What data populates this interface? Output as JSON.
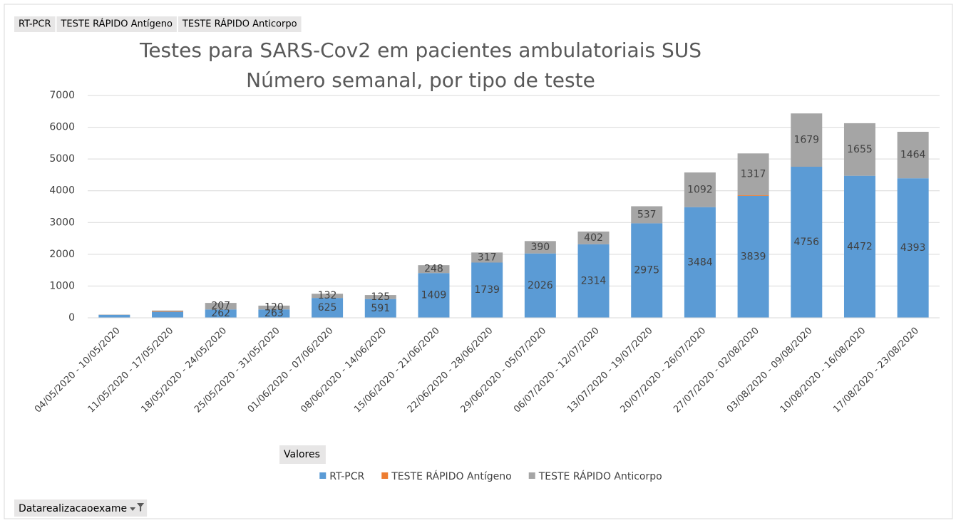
{
  "chart_data": {
    "type": "stacked_bar",
    "title": "Testes para SARS-Cov2 em pacientes ambulatoriais SUS",
    "subtitle": "Número semanal, por tipo de teste",
    "categories": [
      "04/05/2020 - 10/05/2020",
      "11/05/2020 - 17/05/2020",
      "18/05/2020 - 24/05/2020",
      "25/05/2020 - 31/05/2020",
      "01/06/2020 - 07/06/2020",
      "08/06/2020 - 14/06/2020",
      "15/06/2020 - 21/06/2020",
      "22/06/2020 - 28/06/2020",
      "29/06/2020 - 05/07/2020",
      "06/07/2020 - 12/07/2020",
      "13/07/2020 - 19/07/2020",
      "20/07/2020 - 26/07/2020",
      "27/07/2020 - 02/08/2020",
      "03/08/2020 - 09/08/2020",
      "10/08/2020 - 16/08/2020",
      "17/08/2020 - 23/08/2020"
    ],
    "series": [
      {
        "name": "RT-PCR",
        "color": "#5b9bd5",
        "values": [
          90,
          190,
          262,
          263,
          625,
          591,
          1409,
          1739,
          2026,
          2314,
          2975,
          3484,
          3839,
          4756,
          4472,
          4393
        ],
        "value_labels": [
          null,
          null,
          "262",
          "263",
          "625",
          "591",
          "1409",
          "1739",
          "2026",
          "2314",
          "2975",
          "3484",
          "3839",
          "4756",
          "4472",
          "4393"
        ]
      },
      {
        "name": "TESTE RÁPIDO Antígeno",
        "color": "#ed7d31",
        "values": [
          0,
          20,
          0,
          0,
          0,
          0,
          0,
          0,
          0,
          0,
          0,
          0,
          20,
          0,
          0,
          0
        ]
      },
      {
        "name": "TESTE RÁPIDO Anticorpo",
        "color": "#a5a5a5",
        "values": [
          10,
          20,
          207,
          120,
          132,
          125,
          248,
          317,
          390,
          402,
          537,
          1092,
          1317,
          1679,
          1655,
          1464
        ],
        "value_labels": [
          null,
          null,
          "207",
          "120",
          "132",
          "125",
          "248",
          "317",
          "390",
          "402",
          "537",
          "1092",
          "1317",
          "1679",
          "1655",
          "1464"
        ]
      }
    ],
    "ylim": [
      0,
      7000
    ],
    "yticks": [
      0,
      1000,
      2000,
      3000,
      4000,
      5000,
      6000,
      7000
    ],
    "grid": true,
    "legend": "bottom",
    "values_field": "Valores",
    "filter_field": "Datarealizacaoexame"
  }
}
